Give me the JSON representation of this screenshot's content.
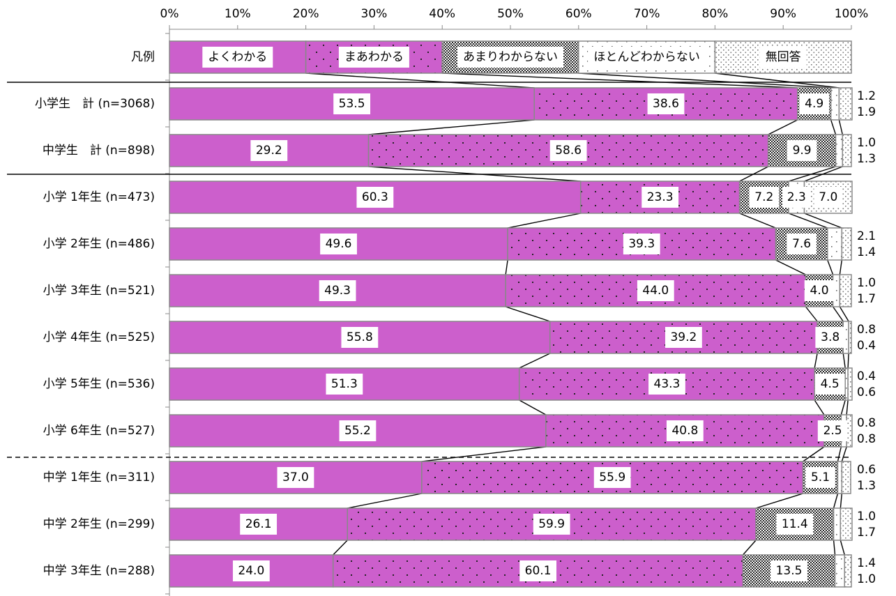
{
  "chart_data": {
    "type": "bar",
    "stacked": "horizontal-100%",
    "x_ticks": [
      "0%",
      "10%",
      "20%",
      "30%",
      "40%",
      "50%",
      "60%",
      "70%",
      "80%",
      "90%",
      "100%"
    ],
    "xlim": [
      0,
      100
    ],
    "grid": false,
    "legend_row_label": "凡例",
    "series": [
      {
        "name": "よくわかる",
        "color": "#cc5fcc"
      },
      {
        "name": "まあわかる",
        "color": "#cc5fcc"
      },
      {
        "name": "あまりわからない",
        "color": "#555555"
      },
      {
        "name": "ほとんどわからない",
        "color": "#ffffff"
      },
      {
        "name": "無回答",
        "color": "#ffffff"
      }
    ],
    "categories": [
      "小学生　計 (n=3068)",
      "中学生　計 (n=898)",
      "小学 1年生 (n=473)",
      "小学 2年生 (n=486)",
      "小学 3年生 (n=521)",
      "小学 4年生 (n=525)",
      "小学 5年生 (n=536)",
      "小学 6年生 (n=527)",
      "中学 1年生 (n=311)",
      "中学 2年生 (n=299)",
      "中学 3年生 (n=288)"
    ],
    "values": [
      [
        53.5,
        38.6,
        4.9,
        1.2,
        1.9
      ],
      [
        29.2,
        58.6,
        9.9,
        1.0,
        1.3
      ],
      [
        60.3,
        23.3,
        7.2,
        2.3,
        7.0
      ],
      [
        49.6,
        39.3,
        7.6,
        2.1,
        1.4
      ],
      [
        49.3,
        44.0,
        4.0,
        1.0,
        1.7
      ],
      [
        55.8,
        39.2,
        3.8,
        0.8,
        0.4
      ],
      [
        51.3,
        43.3,
        4.5,
        0.4,
        0.6
      ],
      [
        55.2,
        40.8,
        2.5,
        0.8,
        0.8
      ],
      [
        37.0,
        55.9,
        5.1,
        0.6,
        1.3
      ],
      [
        26.1,
        59.9,
        11.4,
        1.0,
        1.7
      ],
      [
        24.0,
        60.1,
        13.5,
        1.4,
        1.0
      ]
    ],
    "value_labels": [
      [
        "53.5",
        "38.6",
        "4.9",
        "1.2",
        "1.9"
      ],
      [
        "29.2",
        "58.6",
        "9.9",
        "1.0",
        "1.3"
      ],
      [
        "60.3",
        "23.3",
        "7.2",
        "2.3",
        "7.0"
      ],
      [
        "49.6",
        "39.3",
        "7.6",
        "2.1",
        "1.4"
      ],
      [
        "49.3",
        "44.0",
        "4.0",
        "1.0",
        "1.7"
      ],
      [
        "55.8",
        "39.2",
        "3.8",
        "0.8",
        "0.4"
      ],
      [
        "51.3",
        "43.3",
        "4.5",
        "0.4",
        "0.6"
      ],
      [
        "55.2",
        "40.8",
        "2.5",
        "0.8",
        "0.8"
      ],
      [
        "37.0",
        "55.9",
        "5.1",
        "0.6",
        "1.3"
      ],
      [
        "26.1",
        "59.9",
        "11.4",
        "1.0",
        "1.7"
      ],
      [
        "24.0",
        "60.1",
        "13.5",
        "1.4",
        "1.0"
      ]
    ]
  }
}
